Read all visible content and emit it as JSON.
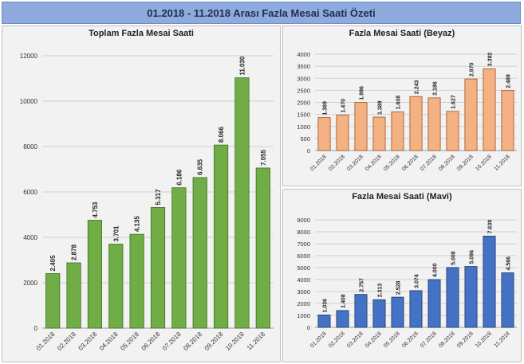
{
  "page_title": "01.2018 - 11.2018 Arası Fazla Mesai Saati Özeti",
  "chart_data": [
    {
      "type": "bar",
      "title": "Toplam Fazla Mesai Saati",
      "categories": [
        "01.2018",
        "02.2018",
        "03.2018",
        "04.2018",
        "05.2018",
        "06.2018",
        "07.2018",
        "08.2018",
        "09.2018",
        "10.2018",
        "11.2018"
      ],
      "values": [
        2405,
        2878,
        4753,
        3701,
        4135,
        5317,
        6186,
        6635,
        8066,
        11030,
        7055
      ],
      "labels": [
        "2.405",
        "2.878",
        "4.753",
        "3.701",
        "4.135",
        "5.317",
        "6.186",
        "6.635",
        "8.066",
        "11.030",
        "7.055"
      ],
      "ylim": [
        0,
        12000
      ],
      "yticks": [
        "0",
        "2000",
        "4000",
        "6000",
        "8000",
        "10000",
        "12000"
      ],
      "grid": true,
      "color": "#70ad47",
      "stroke": "#3f6f23"
    },
    {
      "type": "bar",
      "title": "Fazla Mesai Saati (Beyaz)",
      "categories": [
        "01.2018",
        "02.2018",
        "03.2018",
        "04.2018",
        "05.2018",
        "06.2018",
        "07.2018",
        "08.2018",
        "09.2018",
        "10.2018",
        "11.2018"
      ],
      "values": [
        1369,
        1470,
        1996,
        1389,
        1608,
        2243,
        2186,
        1627,
        2970,
        3392,
        2489
      ],
      "labels": [
        "1.369",
        "1.470",
        "1.996",
        "1.389",
        "1.608",
        "2.243",
        "2.186",
        "1.627",
        "2.970",
        "3.392",
        "2.489"
      ],
      "ylim": [
        0,
        4000
      ],
      "yticks": [
        "0",
        "500",
        "1000",
        "1500",
        "2000",
        "2500",
        "3000",
        "3500",
        "4000"
      ],
      "grid": true,
      "color": "#f4b183",
      "stroke": "#a05020"
    },
    {
      "type": "bar",
      "title": "Fazla Mesai Saati (Mavi)",
      "categories": [
        "01.2018",
        "02.2018",
        "03.2018",
        "04.2018",
        "05.2018",
        "06.2018",
        "07.2018",
        "08.2018",
        "09.2018",
        "10.2018",
        "11.2018"
      ],
      "values": [
        1036,
        1408,
        2757,
        2313,
        2528,
        3074,
        4000,
        5008,
        5096,
        7639,
        4566
      ],
      "labels": [
        "1.036",
        "1.408",
        "2.757",
        "2.313",
        "2.528",
        "3.074",
        "4.000",
        "5.008",
        "5.096",
        "7.639",
        "4.566"
      ],
      "ylim": [
        0,
        9000
      ],
      "yticks": [
        "0",
        "1000",
        "2000",
        "3000",
        "4000",
        "5000",
        "6000",
        "7000",
        "8000",
        "9000"
      ],
      "grid": true,
      "color": "#4472c4",
      "stroke": "#203864"
    }
  ]
}
